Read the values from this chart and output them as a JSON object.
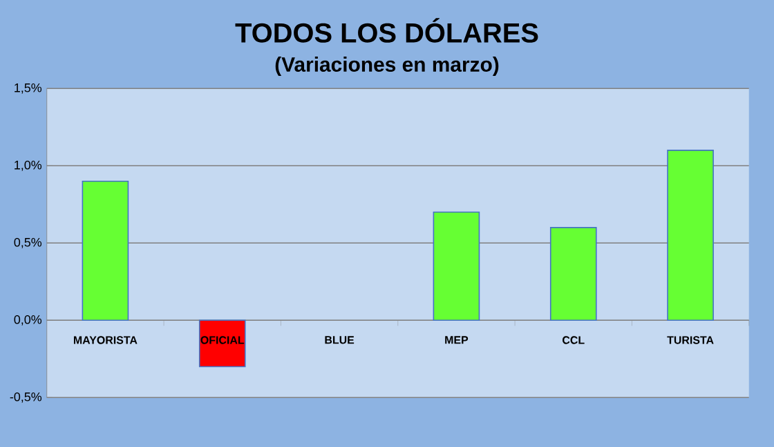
{
  "chart_data": {
    "type": "bar",
    "title": "TODOS LOS DÓLARES",
    "subtitle": "(Variaciones en marzo)",
    "categories": [
      "MAYORISTA",
      "OFICIAL",
      "BLUE",
      "MEP",
      "CCL",
      "TURISTA"
    ],
    "values": [
      0.9,
      -0.3,
      0,
      0.7,
      0.6,
      1.1
    ],
    "colors": [
      "#66ff33",
      "#ff0000",
      "#66ff33",
      "#66ff33",
      "#66ff33",
      "#66ff33"
    ],
    "ylim": [
      -0.5,
      1.5
    ],
    "yticks": [
      {
        "value": -0.5,
        "label": "-0,5%"
      },
      {
        "value": 0,
        "label": "0,0%"
      },
      {
        "value": 0.5,
        "label": "0,5%"
      },
      {
        "value": 1,
        "label": "1,0%"
      },
      {
        "value": 1.5,
        "label": "1,5%"
      }
    ],
    "grid": "y"
  }
}
